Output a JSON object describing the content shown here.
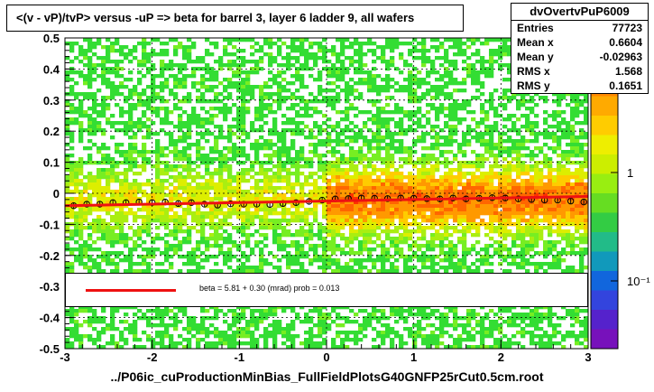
{
  "title": "<(v - vP)/tvP> versus  -uP => beta for barrel 3, layer 6 ladder 9, all wafers",
  "stats": {
    "name": "dvOvertvPuP6009",
    "rows": [
      {
        "label": "Entries",
        "value": "77723"
      },
      {
        "label": "Mean x",
        "value": "0.6604"
      },
      {
        "label": "Mean y",
        "value": "-0.02963"
      },
      {
        "label": "RMS x",
        "value": "1.568"
      },
      {
        "label": "RMS y",
        "value": "0.1651"
      }
    ]
  },
  "fit": {
    "text": "beta =    5.81 +  0.30 (mrad) prob = 0.013",
    "color": "#ee1111"
  },
  "file_label": "../P06ic_cuProductionMinBias_FullFieldPlotsG40GNFP25rCut0.5cm.root",
  "colors": {
    "plot_background": "#ffffff",
    "low_density": "#33dd33",
    "mid_density": "#ffee00",
    "high_density": "#ff3300",
    "profile_marker": "#000000"
  },
  "chart_data": {
    "type": "heatmap",
    "title": "<(v - vP)/tvP> versus  -uP => beta for barrel 3, layer 6 ladder 9, all wafers",
    "xlim": [
      -3,
      3
    ],
    "ylim": [
      -0.5,
      0.5
    ],
    "x_ticks": [
      "-3",
      "-2",
      "-1",
      "0",
      "1",
      "2",
      "3"
    ],
    "y_ticks": [
      "0.5",
      "0.4",
      "0.3",
      "0.2",
      "0.1",
      "0",
      "-0.1",
      "-0.2",
      "-0.3",
      "-0.4",
      "-0.5"
    ],
    "z_scale": "log",
    "z_ticks": [
      "1",
      "10"
    ],
    "z_ticks_visible": [
      "1",
      "10⁻¹"
    ],
    "grid": true,
    "profile": {
      "x": [
        -2.9,
        -2.75,
        -2.6,
        -2.45,
        -2.3,
        -2.15,
        -2.0,
        -1.85,
        -1.7,
        -1.55,
        -1.4,
        -1.25,
        -1.1,
        -0.95,
        -0.8,
        -0.65,
        -0.5,
        -0.35,
        -0.2,
        -0.05,
        0.1,
        0.25,
        0.4,
        0.55,
        0.7,
        0.85,
        1.0,
        1.15,
        1.3,
        1.45,
        1.6,
        1.75,
        1.9,
        2.05,
        2.2,
        2.35,
        2.5,
        2.65,
        2.8,
        2.95
      ],
      "y": [
        -0.04,
        -0.035,
        -0.035,
        -0.03,
        -0.03,
        -0.028,
        -0.03,
        -0.028,
        -0.033,
        -0.03,
        -0.035,
        -0.038,
        -0.034,
        -0.035,
        -0.035,
        -0.036,
        -0.033,
        -0.03,
        -0.026,
        -0.022,
        -0.018,
        -0.017,
        -0.015,
        -0.016,
        -0.017,
        -0.015,
        -0.016,
        -0.017,
        -0.018,
        -0.015,
        -0.018,
        -0.016,
        -0.014,
        -0.015,
        -0.018,
        -0.02,
        -0.022,
        -0.022,
        -0.025,
        -0.028
      ]
    },
    "fit_line": {
      "x": [
        -3,
        3
      ],
      "y": [
        -0.04,
        -0.01
      ]
    }
  }
}
